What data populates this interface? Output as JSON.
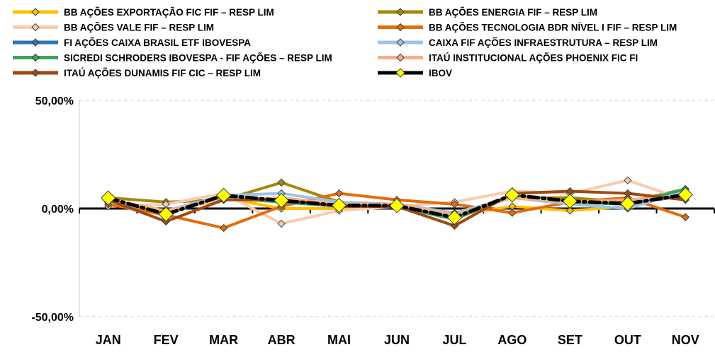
{
  "chart_data": {
    "type": "line",
    "title": "",
    "xlabel": "",
    "ylabel": "",
    "categories": [
      "JAN",
      "FEV",
      "MAR",
      "ABR",
      "MAI",
      "JUN",
      "JUL",
      "AGO",
      "SET",
      "OUT",
      "NOV"
    ],
    "ylim": [
      -50,
      50
    ],
    "yticks": [
      -50,
      0,
      50
    ],
    "ytick_labels": [
      "-50,00%",
      "0,00%",
      "50,00%"
    ],
    "y_unit": "%",
    "grid": "horizontal dashed",
    "legend_position": "top",
    "series": [
      {
        "name": "BB AÇÕES EXPORTAÇÃO FIC FIF – RESP LIM",
        "color": "#FFC000",
        "values": [
          3,
          -2,
          5,
          0,
          0,
          1,
          -3,
          1,
          -1,
          1,
          8
        ]
      },
      {
        "name": "BB AÇÕES ENERGIA FIF – RESP LIM",
        "color": "#A6870B",
        "values": [
          5,
          3,
          4,
          12,
          3,
          1,
          -2,
          5,
          5,
          3,
          9
        ]
      },
      {
        "name": "BB AÇÕES VALE FIF – RESP LIM",
        "color": "#F8CBAD",
        "values": [
          1,
          2,
          7,
          -7,
          -1,
          1,
          3,
          8,
          7,
          13,
          4
        ]
      },
      {
        "name": "BB AÇÕES TECNOLOGIA BDR NÍVEL I FIF – RESP LIM",
        "color": "#E46C0A",
        "values": [
          2,
          -3,
          -9,
          1,
          7,
          4,
          2,
          -2,
          3,
          5,
          -4
        ]
      },
      {
        "name": "FI AÇÕES CAIXA BRASIL ETF IBOVESPA",
        "color": "#2E75B6",
        "values": [
          4,
          -2,
          5,
          3,
          1,
          1,
          -4,
          6,
          3,
          2,
          6
        ]
      },
      {
        "name": "CAIXA FIF AÇÕES INFRAESTRUTURA – RESP LIM",
        "color": "#9DC3E6",
        "values": [
          3,
          -1,
          6,
          7,
          3,
          2,
          -2,
          5,
          2,
          0,
          8
        ]
      },
      {
        "name": "SICREDI SCHRODERS IBOVESPA - FIF AÇÕES – RESP LIM",
        "color": "#3DA35D",
        "values": [
          4,
          -2,
          5,
          3,
          1,
          1,
          -5,
          6,
          3,
          2,
          9
        ]
      },
      {
        "name": "ITAÚ INSTITUCIONAL AÇÕES PHOENIX FIC FI",
        "color": "#F4B183",
        "values": [
          4,
          -1,
          4,
          5,
          2,
          2,
          -3,
          5,
          3,
          4,
          6
        ]
      },
      {
        "name": "ITAÚ AÇÕES DUNAMIS FIF CIC – RESP LIM",
        "color": "#9C4A14",
        "values": [
          4,
          -6,
          4,
          4,
          1,
          1,
          -8,
          7,
          8,
          7,
          4
        ]
      },
      {
        "name": "IBOV",
        "color": "#000000",
        "values": [
          4.86,
          -2.64,
          6.08,
          3.69,
          1.45,
          1.33,
          -4.17,
          6.28,
          3.4,
          2.26,
          6.37
        ]
      }
    ]
  }
}
